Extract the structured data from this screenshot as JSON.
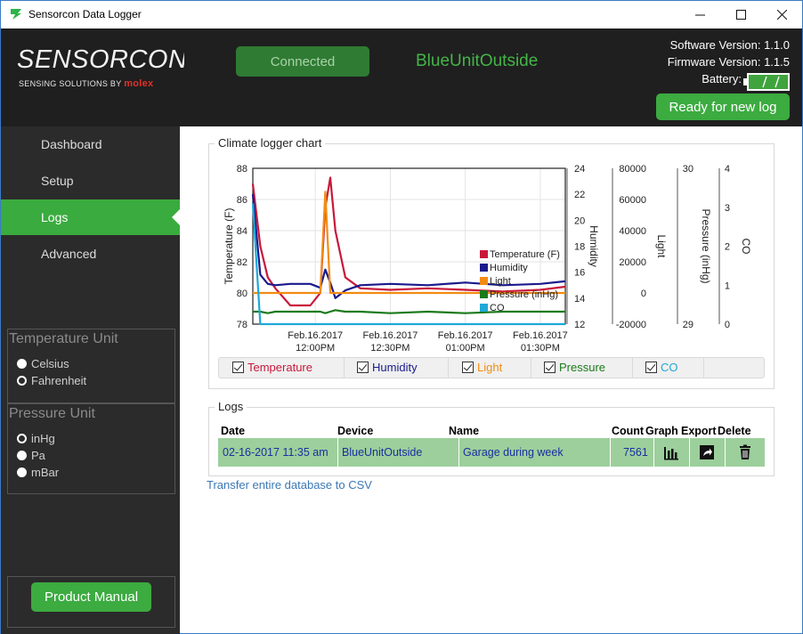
{
  "window": {
    "title": "Sensorcon Data Logger"
  },
  "header": {
    "logo_text": "SENSORCON",
    "logo_sub": "SENSING SOLUTIONS BY",
    "logo_brand": "molex",
    "status": "Connected",
    "device_name": "BlueUnitOutside",
    "software_version": "Software Version: 1.1.0",
    "firmware_version": "Firmware Version: 1.1.5",
    "battery_label": "Battery:",
    "ready_button": "Ready for new log"
  },
  "sidebar": {
    "items": [
      {
        "label": "Dashboard"
      },
      {
        "label": "Setup"
      },
      {
        "label": "Logs"
      },
      {
        "label": "Advanced"
      }
    ],
    "temperature_unit": {
      "title": "Temperature Unit",
      "options": [
        "Celsius",
        "Fahrenheit"
      ],
      "selected": "Fahrenheit"
    },
    "pressure_unit": {
      "title": "Pressure Unit",
      "options": [
        "inHg",
        "Pa",
        "mBar"
      ],
      "selected": "inHg"
    },
    "manual_button": "Product Manual"
  },
  "chart_section": {
    "title": "Climate logger chart",
    "legend_checks": [
      {
        "label": "Temperature",
        "color": "#c8183a"
      },
      {
        "label": "Humidity",
        "color": "#1a1a8c"
      },
      {
        "label": "Light",
        "color": "#f28c12"
      },
      {
        "label": "Pressure",
        "color": "#1b7a1b"
      },
      {
        "label": "CO",
        "color": "#1fa8d8"
      }
    ]
  },
  "chart_data": {
    "type": "line",
    "x_tick_dates": [
      "Feb.16.2017",
      "Feb.16.2017",
      "Feb.16.2017",
      "Feb.16.2017"
    ],
    "x_tick_times": [
      "12:00PM",
      "12:30PM",
      "01:00PM",
      "01:30PM"
    ],
    "x": [
      "11:35",
      "11:38",
      "11:41",
      "11:44",
      "11:50",
      "11:58",
      "12:02",
      "12:04",
      "12:06",
      "12:08",
      "12:12",
      "12:18",
      "12:30",
      "12:45",
      "13:00",
      "13:15",
      "13:30",
      "13:40"
    ],
    "axes": [
      {
        "label": "Temperature (F)",
        "ylim": [
          78,
          88
        ],
        "ticks": [
          78,
          80,
          82,
          84,
          86,
          88
        ]
      },
      {
        "label": "Humidity",
        "ylim": [
          12,
          24
        ],
        "ticks": [
          12,
          14,
          16,
          18,
          20,
          22,
          24
        ]
      },
      {
        "label": "Light",
        "ylim": [
          -20000,
          80000
        ],
        "ticks": [
          -20000,
          0,
          20000,
          40000,
          60000,
          80000
        ]
      },
      {
        "label": "Pressure (inHg)",
        "ylim": [
          29,
          30
        ],
        "ticks": [
          29,
          30
        ]
      },
      {
        "label": "CO",
        "ylim": [
          0,
          4
        ],
        "ticks": [
          0,
          1,
          2,
          3,
          4
        ]
      }
    ],
    "series": [
      {
        "name": "Temperature (F)",
        "color": "#c8183a",
        "values": [
          87,
          83,
          81,
          80.3,
          79.2,
          79.2,
          80,
          85.5,
          87.4,
          84,
          81,
          80.3,
          80.2,
          80.3,
          80.2,
          80.1,
          80.2,
          80.4
        ]
      },
      {
        "name": "Humidity",
        "color": "#1a1a8c",
        "values": [
          22,
          15.8,
          15.1,
          15,
          15.1,
          15.1,
          14.8,
          16.2,
          15.2,
          14,
          14.6,
          15,
          15.1,
          15,
          15.2,
          15,
          15.1,
          15.3
        ]
      },
      {
        "name": "Light",
        "color": "#f28c12",
        "values": [
          0,
          0,
          0,
          0,
          0,
          0,
          0,
          65000,
          0,
          0,
          0,
          0,
          0,
          0,
          0,
          0,
          0,
          0
        ]
      },
      {
        "name": "Pressure (inHg)",
        "color": "#1b7a1b",
        "values": [
          29.08,
          29.08,
          29.07,
          29.08,
          29.08,
          29.08,
          29.08,
          29.07,
          29.08,
          29.09,
          29.08,
          29.08,
          29.07,
          29.08,
          29.07,
          29.08,
          29.08,
          29.08
        ]
      },
      {
        "name": "CO",
        "color": "#1fa8d8",
        "values": [
          3.1,
          0,
          0,
          0,
          0,
          0,
          0,
          0,
          0,
          0,
          0,
          0,
          0,
          0,
          0,
          0,
          0,
          0
        ]
      }
    ],
    "legend_position": "right-inside",
    "grid": true
  },
  "logs": {
    "title": "Logs",
    "columns": [
      "Date",
      "Device",
      "Name",
      "Count",
      "Graph",
      "Export",
      "Delete"
    ],
    "rows": [
      {
        "date": "02-16-2017 11:35 am",
        "device": "BlueUnitOutside",
        "name": "Garage during week",
        "count": "7561"
      }
    ],
    "transfer_link": "Transfer entire database to CSV"
  }
}
